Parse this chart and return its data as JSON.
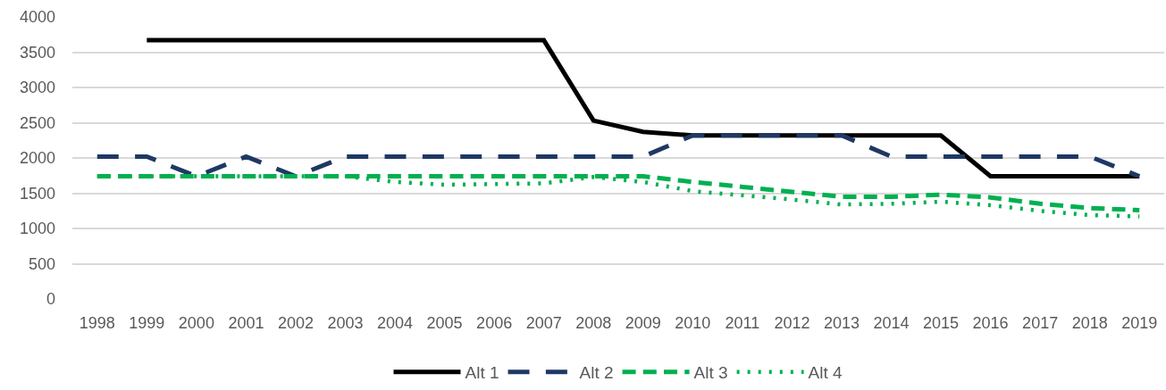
{
  "chart_data": {
    "type": "line",
    "categories": [
      "1998",
      "1999",
      "2000",
      "2001",
      "2002",
      "2003",
      "2004",
      "2005",
      "2006",
      "2007",
      "2008",
      "2009",
      "2010",
      "2011",
      "2012",
      "2013",
      "2014",
      "2015",
      "2016",
      "2017",
      "2018",
      "2019"
    ],
    "series": [
      {
        "name": "Alt 1",
        "color": "#000000",
        "line_style": "solid",
        "values": [
          null,
          3670,
          3670,
          3670,
          3670,
          3670,
          3670,
          3670,
          3670,
          3670,
          2530,
          2370,
          2320,
          2320,
          2320,
          2320,
          2320,
          2320,
          1740,
          1740,
          1740,
          1740
        ]
      },
      {
        "name": "Alt 2",
        "color": "#1f3864",
        "line_style": "dashed",
        "values": [
          2020,
          2020,
          1740,
          2020,
          1740,
          2020,
          2020,
          2020,
          2020,
          2020,
          2020,
          2020,
          2320,
          2320,
          2320,
          2320,
          2020,
          2020,
          2020,
          2020,
          2020,
          1740
        ]
      },
      {
        "name": "Alt 3",
        "color": "#00b050",
        "line_style": "dashed",
        "values": [
          1740,
          1740,
          1740,
          1740,
          1740,
          1740,
          1740,
          1740,
          1740,
          1740,
          1740,
          1740,
          1660,
          1590,
          1520,
          1450,
          1450,
          1480,
          1440,
          1350,
          1290,
          1260
        ]
      },
      {
        "name": "Alt 4",
        "color": "#00b050",
        "line_style": "dotted",
        "values": [
          1740,
          1740,
          1740,
          1740,
          1740,
          1740,
          1660,
          1620,
          1630,
          1640,
          1730,
          1660,
          1530,
          1470,
          1410,
          1340,
          1350,
          1380,
          1330,
          1250,
          1190,
          1170
        ]
      }
    ],
    "ylim": [
      0,
      4000
    ],
    "yticks": [
      0,
      500,
      1000,
      1500,
      2000,
      2500,
      3000,
      3500,
      4000
    ],
    "grid": "y",
    "legend": "bottom"
  }
}
